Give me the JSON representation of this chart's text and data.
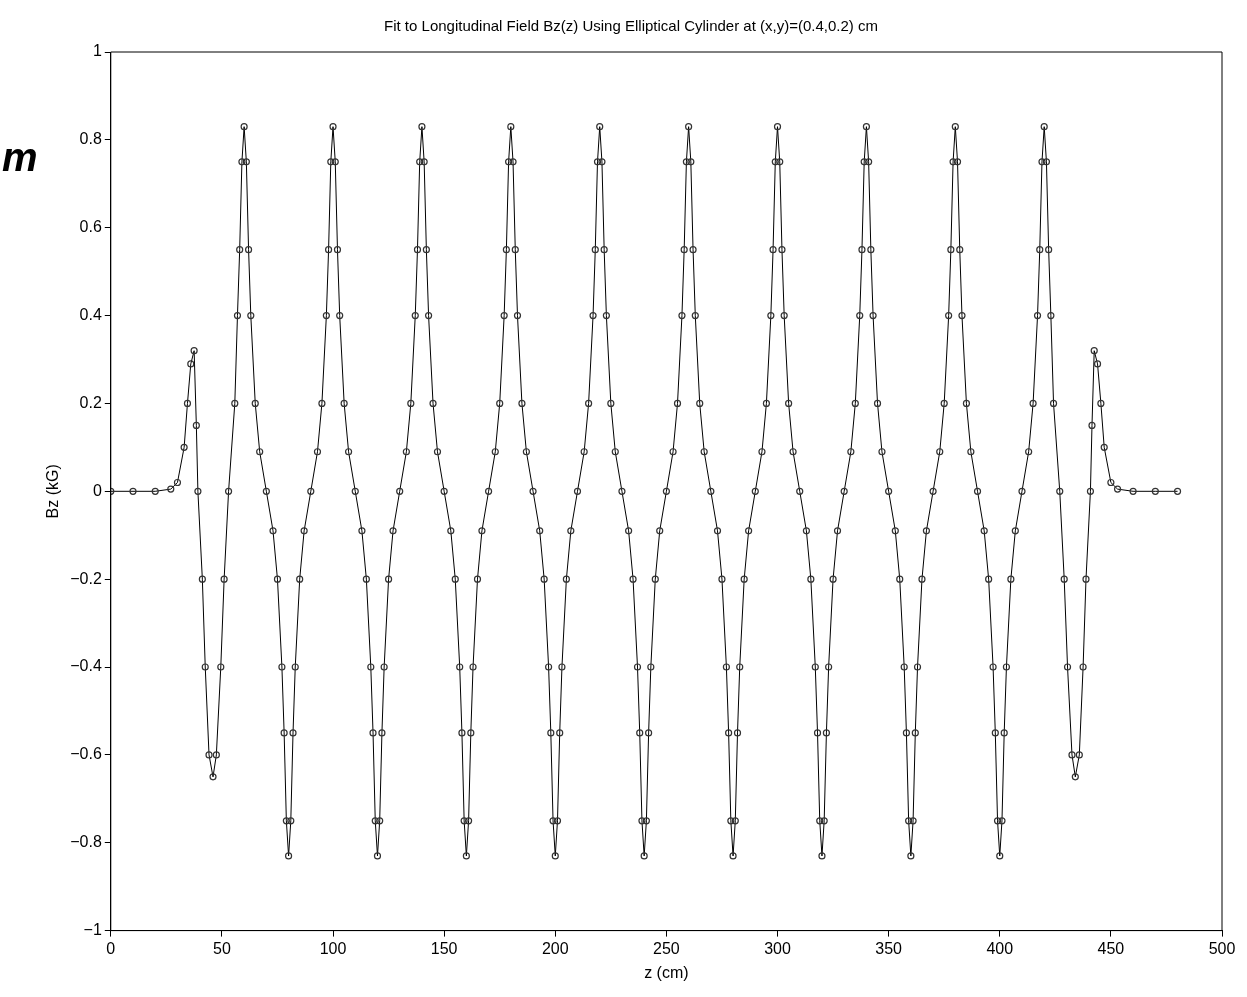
{
  "chart_data": {
    "type": "line",
    "title": "Fit to Longitudinal Field Bz(z) Using Elliptical Cylinder at (x,y)=(0.4,0.2) cm",
    "xlabel": "z (cm)",
    "ylabel": "Bz (kG)",
    "annotations": [
      "m"
    ],
    "xlim": [
      0,
      500
    ],
    "xticks": [
      0,
      50,
      100,
      150,
      200,
      250,
      300,
      350,
      400,
      450,
      500
    ],
    "ylim": [
      -1,
      1
    ],
    "yticks": [
      {
        "value": -1,
        "label": "−1"
      },
      {
        "value": -0.8,
        "label": "−0.8"
      },
      {
        "value": -0.6,
        "label": "−0.6"
      },
      {
        "value": -0.4,
        "label": "−0.4"
      },
      {
        "value": -0.2,
        "label": "−0.2"
      },
      0,
      0.2,
      0.4,
      0.6,
      0.8,
      1
    ],
    "grid": false,
    "legend": false,
    "marker": "circle",
    "line_style": "solid",
    "series": [
      {
        "color": "#333333",
        "x": [
          0,
          10,
          20,
          27,
          30,
          33,
          34.5,
          36,
          37.5,
          38.5,
          39.2,
          41.2,
          42.5,
          44.2,
          46,
          47.5,
          49.5,
          51,
          53,
          55.8,
          57,
          58,
          59,
          60,
          61,
          62,
          63,
          65,
          67,
          70,
          73,
          75,
          77,
          78,
          79,
          80,
          81,
          82,
          83,
          85,
          87,
          90,
          93,
          95,
          97,
          98,
          99,
          100,
          101,
          102,
          103,
          105,
          107,
          110,
          113,
          115,
          117,
          118,
          119,
          120,
          121,
          122,
          123,
          125,
          127,
          130,
          133,
          135,
          137,
          138,
          139,
          140,
          141,
          142,
          143,
          145,
          147,
          150,
          153,
          155,
          157,
          158,
          159,
          160,
          161,
          162,
          163,
          165,
          167,
          170,
          173,
          175,
          177,
          178,
          179,
          180,
          181,
          182,
          183,
          185,
          187,
          190,
          193,
          195,
          197,
          198,
          199,
          200,
          201,
          202,
          203,
          205,
          207,
          210,
          213,
          215,
          217,
          218,
          219,
          220,
          221,
          222,
          223,
          225,
          227,
          230,
          233,
          235,
          237,
          238,
          239,
          240,
          241,
          242,
          243,
          245,
          247,
          250,
          253,
          255,
          257,
          258,
          259,
          260,
          261,
          262,
          263,
          265,
          267,
          270,
          273,
          275,
          277,
          278,
          279,
          280,
          281,
          282,
          283,
          285,
          287,
          290,
          293,
          295,
          297,
          298,
          299,
          300,
          301,
          302,
          303,
          305,
          307,
          310,
          313,
          315,
          317,
          318,
          319,
          320,
          321,
          322,
          323,
          325,
          327,
          330,
          333,
          335,
          337,
          338,
          339,
          340,
          341,
          342,
          343,
          345,
          347,
          350,
          353,
          355,
          357,
          358,
          359,
          360,
          361,
          362,
          363,
          365,
          367,
          370,
          373,
          375,
          377,
          378,
          379,
          380,
          381,
          382,
          383,
          385,
          387,
          390,
          393,
          395,
          397,
          398,
          399,
          400,
          401,
          402,
          403,
          405,
          407,
          410,
          413,
          415,
          417,
          418,
          419,
          420,
          421,
          422,
          423,
          424.2,
          427,
          429,
          430.5,
          432.5,
          434,
          435.8,
          437.5,
          438.8,
          440.8,
          441.5,
          442.5,
          444,
          445.5,
          447,
          450,
          453,
          460,
          470,
          480
        ],
        "values": [
          0,
          0,
          0,
          0.005,
          0.02,
          0.1,
          0.2,
          0.29,
          0.32,
          0.15,
          0,
          -0.2,
          -0.4,
          -0.6,
          -0.65,
          -0.6,
          -0.4,
          -0.2,
          0,
          0.2,
          0.4,
          0.55,
          0.75,
          0.83,
          0.75,
          0.55,
          0.4,
          0.2,
          0.09,
          0,
          -0.09,
          -0.2,
          -0.4,
          -0.55,
          -0.75,
          -0.83,
          -0.75,
          -0.55,
          -0.4,
          -0.2,
          -0.09,
          0,
          0.09,
          0.2,
          0.4,
          0.55,
          0.75,
          0.83,
          0.75,
          0.55,
          0.4,
          0.2,
          0.09,
          0,
          -0.09,
          -0.2,
          -0.4,
          -0.55,
          -0.75,
          -0.83,
          -0.75,
          -0.55,
          -0.4,
          -0.2,
          -0.09,
          0,
          0.09,
          0.2,
          0.4,
          0.55,
          0.75,
          0.83,
          0.75,
          0.55,
          0.4,
          0.2,
          0.09,
          0,
          -0.09,
          -0.2,
          -0.4,
          -0.55,
          -0.75,
          -0.83,
          -0.75,
          -0.55,
          -0.4,
          -0.2,
          -0.09,
          0,
          0.09,
          0.2,
          0.4,
          0.55,
          0.75,
          0.83,
          0.75,
          0.55,
          0.4,
          0.2,
          0.09,
          0,
          -0.09,
          -0.2,
          -0.4,
          -0.55,
          -0.75,
          -0.83,
          -0.75,
          -0.55,
          -0.4,
          -0.2,
          -0.09,
          0,
          0.09,
          0.2,
          0.4,
          0.55,
          0.75,
          0.83,
          0.75,
          0.55,
          0.4,
          0.2,
          0.09,
          0,
          -0.09,
          -0.2,
          -0.4,
          -0.55,
          -0.75,
          -0.83,
          -0.75,
          -0.55,
          -0.4,
          -0.2,
          -0.09,
          0,
          0.09,
          0.2,
          0.4,
          0.55,
          0.75,
          0.83,
          0.75,
          0.55,
          0.4,
          0.2,
          0.09,
          0,
          -0.09,
          -0.2,
          -0.4,
          -0.55,
          -0.75,
          -0.83,
          -0.75,
          -0.55,
          -0.4,
          -0.2,
          -0.09,
          0,
          0.09,
          0.2,
          0.4,
          0.55,
          0.75,
          0.83,
          0.75,
          0.55,
          0.4,
          0.2,
          0.09,
          0,
          -0.09,
          -0.2,
          -0.4,
          -0.55,
          -0.75,
          -0.83,
          -0.75,
          -0.55,
          -0.4,
          -0.2,
          -0.09,
          0,
          0.09,
          0.2,
          0.4,
          0.55,
          0.75,
          0.83,
          0.75,
          0.55,
          0.4,
          0.2,
          0.09,
          0,
          -0.09,
          -0.2,
          -0.4,
          -0.55,
          -0.75,
          -0.83,
          -0.75,
          -0.55,
          -0.4,
          -0.2,
          -0.09,
          0,
          0.09,
          0.2,
          0.4,
          0.55,
          0.75,
          0.83,
          0.75,
          0.55,
          0.4,
          0.2,
          0.09,
          0,
          -0.09,
          -0.2,
          -0.4,
          -0.55,
          -0.75,
          -0.83,
          -0.75,
          -0.55,
          -0.4,
          -0.2,
          -0.09,
          0,
          0.09,
          0.2,
          0.4,
          0.55,
          0.75,
          0.83,
          0.75,
          0.55,
          0.4,
          0.2,
          0,
          -0.2,
          -0.4,
          -0.6,
          -0.65,
          -0.6,
          -0.4,
          -0.2,
          0,
          0.15,
          0.32,
          0.29,
          0.2,
          0.1,
          0.02,
          0.005,
          0,
          0,
          0
        ]
      }
    ]
  }
}
